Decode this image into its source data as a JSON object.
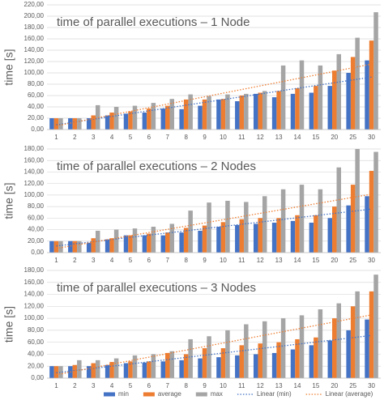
{
  "chart_data": [
    {
      "type": "bar",
      "title": "time of parallel executions – 1 Node",
      "y_label": "time [s]",
      "categories": [
        "1",
        "2",
        "3",
        "4",
        "5",
        "6",
        "7",
        "8",
        "9",
        "10",
        "11",
        "12",
        "13",
        "14",
        "15",
        "20",
        "25",
        "30"
      ],
      "series": [
        {
          "name": "min",
          "color": "#4472c4",
          "values": [
            20,
            20,
            20,
            25,
            28,
            30,
            37,
            36,
            42,
            53,
            50,
            63,
            57,
            63,
            65,
            77,
            100,
            122
          ]
        },
        {
          "name": "average",
          "color": "#ed7d31",
          "values": [
            20,
            20,
            25,
            30,
            32,
            37,
            42,
            53,
            53,
            54,
            60,
            65,
            68,
            73,
            77,
            104,
            128,
            157
          ]
        },
        {
          "name": "max",
          "color": "#a5a5a5",
          "values": [
            20,
            20,
            43,
            40,
            42,
            47,
            54,
            62,
            59,
            62,
            63,
            68,
            113,
            122,
            113,
            133,
            162,
            207
          ]
        }
      ],
      "trendlines": [
        {
          "name": "Linear (min)",
          "color": "#4472c4",
          "series": 0
        },
        {
          "name": "Linear (average)",
          "color": "#ed7d31",
          "series": 1
        }
      ],
      "ylim": [
        0,
        220
      ],
      "yticks": [
        {
          "value": 0,
          "label": "0,00"
        },
        {
          "value": 20,
          "label": "20,00"
        },
        {
          "value": 40,
          "label": "40,00"
        },
        {
          "value": 60,
          "label": "60,00"
        },
        {
          "value": 80,
          "label": "80,00"
        },
        {
          "value": 100,
          "label": "100,00"
        },
        {
          "value": 120,
          "label": "120,00"
        },
        {
          "value": 140,
          "label": "140,00"
        },
        {
          "value": 160,
          "label": "160,00"
        },
        {
          "value": 180,
          "label": "180,00"
        },
        {
          "value": 200,
          "label": "200,00"
        },
        {
          "value": 220,
          "label": "220,00"
        }
      ],
      "grid": true,
      "legend": "none"
    },
    {
      "type": "bar",
      "title": "time of parallel executions – 2 Nodes",
      "y_label": "time [s]",
      "categories": [
        "1",
        "2",
        "3",
        "4",
        "5",
        "6",
        "7",
        "8",
        "9",
        "10",
        "11",
        "12",
        "13",
        "14",
        "15",
        "20",
        "25",
        "30"
      ],
      "series": [
        {
          "name": "min",
          "color": "#4472c4",
          "values": [
            20,
            20,
            17,
            23,
            30,
            30,
            30,
            35,
            38,
            45,
            48,
            50,
            52,
            55,
            52,
            60,
            82,
            98
          ]
        },
        {
          "name": "average",
          "color": "#ed7d31",
          "values": [
            20,
            20,
            25,
            25,
            30,
            33,
            35,
            43,
            47,
            53,
            58,
            60,
            60,
            65,
            65,
            80,
            118,
            142
          ]
        },
        {
          "name": "max",
          "color": "#a5a5a5",
          "values": [
            20,
            20,
            38,
            40,
            42,
            45,
            50,
            73,
            87,
            90,
            88,
            98,
            110,
            118,
            110,
            148,
            180,
            175
          ]
        }
      ],
      "trendlines": [
        {
          "name": "Linear (min)",
          "color": "#4472c4",
          "series": 0
        },
        {
          "name": "Linear (average)",
          "color": "#ed7d31",
          "series": 1
        }
      ],
      "ylim": [
        0,
        180
      ],
      "yticks": [
        {
          "value": 0,
          "label": "0,00"
        },
        {
          "value": 20,
          "label": "20,00"
        },
        {
          "value": 40,
          "label": "40,00"
        },
        {
          "value": 60,
          "label": "60,00"
        },
        {
          "value": 80,
          "label": "80,00"
        },
        {
          "value": 100,
          "label": "100,00"
        },
        {
          "value": 120,
          "label": "120,00"
        },
        {
          "value": 140,
          "label": "140,00"
        },
        {
          "value": 160,
          "label": "160,00"
        },
        {
          "value": 180,
          "label": "180,00"
        }
      ],
      "grid": true,
      "legend": "none"
    },
    {
      "type": "bar",
      "title": "time of parallel executions – 3 Nodes",
      "y_label": "time [s]",
      "categories": [
        "1",
        "2",
        "3",
        "4",
        "5",
        "6",
        "7",
        "8",
        "9",
        "10",
        "11",
        "12",
        "13",
        "14",
        "15",
        "20",
        "25",
        "30"
      ],
      "series": [
        {
          "name": "min",
          "color": "#4472c4",
          "values": [
            20,
            20,
            20,
            22,
            25,
            26,
            28,
            30,
            33,
            35,
            38,
            40,
            42,
            48,
            55,
            63,
            80,
            98
          ]
        },
        {
          "name": "average",
          "color": "#ed7d31",
          "values": [
            20,
            22,
            25,
            27,
            28,
            28,
            42,
            40,
            50,
            50,
            55,
            58,
            60,
            65,
            68,
            100,
            120,
            145
          ]
        },
        {
          "name": "max",
          "color": "#a5a5a5",
          "values": [
            20,
            30,
            30,
            33,
            38,
            40,
            45,
            65,
            70,
            80,
            90,
            95,
            100,
            105,
            115,
            125,
            145,
            173
          ]
        }
      ],
      "trendlines": [
        {
          "name": "Linear (min)",
          "color": "#4472c4",
          "series": 0
        },
        {
          "name": "Linear (average)",
          "color": "#ed7d31",
          "series": 1
        }
      ],
      "ylim": [
        0,
        180
      ],
      "yticks": [
        {
          "value": 0,
          "label": "0,00"
        },
        {
          "value": 20,
          "label": "20,00"
        },
        {
          "value": 40,
          "label": "40,00"
        },
        {
          "value": 60,
          "label": "60,00"
        },
        {
          "value": 80,
          "label": "80,00"
        },
        {
          "value": 100,
          "label": "100,00"
        },
        {
          "value": 120,
          "label": "120,00"
        },
        {
          "value": 140,
          "label": "140,00"
        },
        {
          "value": 160,
          "label": "160,00"
        },
        {
          "value": 180,
          "label": "180,00"
        }
      ],
      "grid": true,
      "legend": "bottom"
    }
  ]
}
